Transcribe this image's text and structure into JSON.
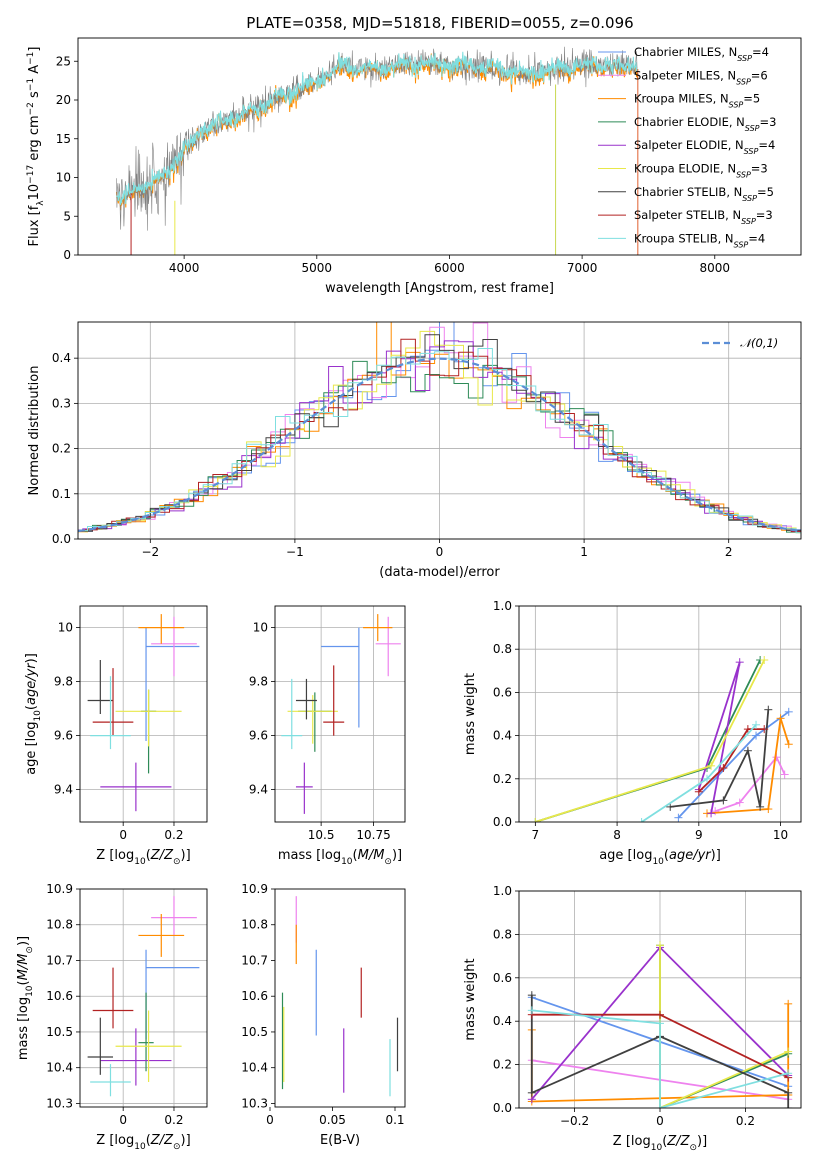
{
  "figure_title": "PLATE=0358, MJD=51818, FIBERID=0055, z=0.096",
  "series_styles": [
    {
      "name": "Chabrier MILES",
      "color": "#6495ed"
    },
    {
      "name": "Salpeter MILES",
      "color": "#ee82ee"
    },
    {
      "name": "Kroupa MILES",
      "color": "#ff8c00"
    },
    {
      "name": "Chabrier ELODIE",
      "color": "#2e8b57"
    },
    {
      "name": "Salpeter ELODIE",
      "color": "#9932cc"
    },
    {
      "name": "Kroupa ELODIE",
      "color": "#e8e84a"
    },
    {
      "name": "Chabrier STELIB",
      "color": "#404040"
    },
    {
      "name": "Salpeter STELIB",
      "color": "#b22222"
    },
    {
      "name": "Kroupa STELIB",
      "color": "#7fdfe0"
    }
  ],
  "chart_data": [
    {
      "id": "spectrum",
      "type": "line",
      "title": "PLATE=0358, MJD=51818, FIBERID=0055, z=0.096",
      "xlabel": "wavelength [Angstrom, rest frame]",
      "ylabel": "Flux [fλ10⁻¹⁷ erg cm⁻² s⁻¹ A⁻¹]",
      "xlim": [
        3200,
        8650
      ],
      "ylim": [
        0,
        28
      ],
      "xticks": [
        4000,
        5000,
        6000,
        7000,
        8000
      ],
      "yticks": [
        0,
        5,
        10,
        15,
        20,
        25
      ],
      "grid": false,
      "legend_position": "top-right",
      "legend": [
        {
          "label": "Chabrier MILES, N",
          "sub": "SSP",
          "suffix": "=4",
          "color": "#6495ed"
        },
        {
          "label": "Salpeter MILES, N",
          "sub": "SSP",
          "suffix": "=6",
          "color": "#ee82ee"
        },
        {
          "label": "Kroupa MILES, N",
          "sub": "SSP",
          "suffix": "=5",
          "color": "#ff8c00"
        },
        {
          "label": "Chabrier ELODIE, N",
          "sub": "SSP",
          "suffix": "=3",
          "color": "#2e8b57"
        },
        {
          "label": "Salpeter ELODIE, N",
          "sub": "SSP",
          "suffix": "=4",
          "color": "#9932cc"
        },
        {
          "label": "Kroupa ELODIE, N",
          "sub": "SSP",
          "suffix": "=3",
          "color": "#e8e84a"
        },
        {
          "label": "Chabrier STELIB, N",
          "sub": "SSP",
          "suffix": "=5",
          "color": "#404040"
        },
        {
          "label": "Salpeter STELIB, N",
          "sub": "SSP",
          "suffix": "=3",
          "color": "#b22222"
        },
        {
          "label": "Kroupa STELIB, N",
          "sub": "SSP",
          "suffix": "=4",
          "color": "#7fdfe0"
        }
      ],
      "observed_range": [
        3490,
        7420
      ],
      "models": [
        {
          "name": "Kroupa STELIB",
          "range": [
            3490,
            7420
          ],
          "x": [
            3500,
            3700,
            3900,
            4000,
            4200,
            4400,
            4600,
            4800,
            5000,
            5200,
            5400,
            5600,
            5800,
            6000,
            6200,
            6400,
            6600,
            6800,
            7000,
            7200,
            7400
          ],
          "y": [
            7.5,
            9,
            11,
            14,
            16.5,
            18,
            19.5,
            21,
            22.5,
            24.5,
            24,
            24.5,
            25,
            24.5,
            24.5,
            24,
            23.5,
            24,
            24.5,
            24.5,
            24.5
          ]
        },
        {
          "name": "Salpeter MILES",
          "range": [
            3490,
            7420
          ],
          "x": [
            3500,
            3700,
            3900,
            4000,
            4200,
            4400,
            4600,
            4800,
            5000,
            5200,
            5400,
            5600,
            5800,
            6000,
            6200,
            6400,
            6600,
            6800,
            7000,
            7200,
            7400
          ],
          "y": [
            7,
            8.5,
            10.5,
            13.5,
            16,
            17.5,
            19,
            20.5,
            22,
            24,
            23.5,
            24,
            24.5,
            24,
            24,
            23.5,
            23,
            23.5,
            24,
            24,
            24
          ]
        }
      ]
    },
    {
      "id": "residuals",
      "type": "step",
      "xlabel": "(data-model)/error",
      "ylabel": "Normed distribution",
      "xlim": [
        -2.5,
        2.5
      ],
      "ylim": [
        0,
        0.48
      ],
      "xticks": [
        -2,
        -1,
        0,
        1,
        2
      ],
      "yticks": [
        0.0,
        0.1,
        0.2,
        0.3,
        0.4
      ],
      "grid": true,
      "legend_position": "top-right",
      "reference": {
        "label": "𝒩(0,1)",
        "mean": 0,
        "sigma": 1,
        "color": "#5b8ed6",
        "style": "dashed"
      }
    },
    {
      "id": "age-vs-Z",
      "type": "errorbar",
      "xlabel": "Z [log10(Z/Z⊙)]",
      "ylabel": "age  [log10(age/yr)]",
      "xlim": [
        -0.17,
        0.33
      ],
      "ylim": [
        9.28,
        10.08
      ],
      "xticks": [
        0.0,
        0.2
      ],
      "yticks": [
        9.4,
        9.6,
        9.8,
        10.0
      ],
      "grid": true,
      "points": [
        {
          "series": "Chabrier MILES",
          "x": 0.09,
          "xerr": [
            0.0,
            0.21
          ],
          "y": 9.93,
          "yerr": [
            0.35,
            0.07
          ]
        },
        {
          "series": "Salpeter MILES",
          "x": 0.2,
          "xerr": [
            0.09,
            0.09
          ],
          "y": 9.94,
          "yerr": [
            0.12,
            0.1
          ]
        },
        {
          "series": "Kroupa MILES",
          "x": 0.15,
          "xerr": [
            0.09,
            0.09
          ],
          "y": 10.0,
          "yerr": [
            0.06,
            0.05
          ]
        },
        {
          "series": "Chabrier ELODIE",
          "x": 0.1,
          "xerr": [
            0.03,
            0.03
          ],
          "y": 9.69,
          "yerr": [
            0.23,
            0.08
          ]
        },
        {
          "series": "Salpeter ELODIE",
          "x": 0.05,
          "xerr": [
            0.14,
            0.14
          ],
          "y": 9.41,
          "yerr": [
            0.09,
            0.09
          ]
        },
        {
          "series": "Kroupa ELODIE",
          "x": 0.1,
          "xerr": [
            0.13,
            0.13
          ],
          "y": 9.69,
          "yerr": [
            0.13,
            0.08
          ]
        },
        {
          "series": "Chabrier STELIB",
          "x": -0.09,
          "xerr": [
            0.05,
            0.05
          ],
          "y": 9.73,
          "yerr": [
            0.05,
            0.15
          ]
        },
        {
          "series": "Salpeter STELIB",
          "x": -0.04,
          "xerr": [
            0.08,
            0.08
          ],
          "y": 9.65,
          "yerr": [
            0.05,
            0.2
          ]
        },
        {
          "series": "Kroupa STELIB",
          "x": -0.05,
          "xerr": [
            0.08,
            0.08
          ],
          "y": 9.6,
          "yerr": [
            0.05,
            0.22
          ]
        }
      ]
    },
    {
      "id": "age-vs-mass",
      "type": "errorbar",
      "xlabel": "mass [log10(M/M⊙)]",
      "ylabel": "",
      "xlim": [
        10.28,
        10.9
      ],
      "ylim": [
        9.28,
        10.08
      ],
      "xticks": [
        10.5,
        10.75
      ],
      "yticks": [
        9.4,
        9.6,
        9.8,
        10.0
      ],
      "grid": true,
      "points": [
        {
          "series": "Chabrier MILES",
          "x": 10.68,
          "xerr": [
            0.18,
            0.0
          ],
          "y": 9.93,
          "yerr": [
            0.3,
            0.07
          ]
        },
        {
          "series": "Salpeter MILES",
          "x": 10.82,
          "xerr": [
            0.06,
            0.06
          ],
          "y": 9.94,
          "yerr": [
            0.12,
            0.1
          ]
        },
        {
          "series": "Kroupa MILES",
          "x": 10.77,
          "xerr": [
            0.07,
            0.07
          ],
          "y": 10.0,
          "yerr": [
            0.05,
            0.05
          ]
        },
        {
          "series": "Chabrier ELODIE",
          "x": 10.47,
          "xerr": [
            0.08,
            0.08
          ],
          "y": 9.69,
          "yerr": [
            0.15,
            0.07
          ]
        },
        {
          "series": "Salpeter ELODIE",
          "x": 10.42,
          "xerr": [
            0.04,
            0.04
          ],
          "y": 9.41,
          "yerr": [
            0.1,
            0.09
          ]
        },
        {
          "series": "Kroupa ELODIE",
          "x": 10.46,
          "xerr": [
            0.12,
            0.12
          ],
          "y": 9.69,
          "yerr": [
            0.12,
            0.06
          ]
        },
        {
          "series": "Chabrier STELIB",
          "x": 10.43,
          "xerr": [
            0.05,
            0.05
          ],
          "y": 9.73,
          "yerr": [
            0.07,
            0.08
          ]
        },
        {
          "series": "Salpeter STELIB",
          "x": 10.56,
          "xerr": [
            0.05,
            0.05
          ],
          "y": 9.65,
          "yerr": [
            0.05,
            0.21
          ]
        },
        {
          "series": "Kroupa STELIB",
          "x": 10.36,
          "xerr": [
            0.05,
            0.05
          ],
          "y": 9.6,
          "yerr": [
            0.05,
            0.21
          ]
        }
      ]
    },
    {
      "id": "mass-weight-vs-age",
      "type": "line",
      "xlabel": "age  [log10(age/yr)]",
      "ylabel": "mass weight",
      "xlim": [
        6.8,
        10.25
      ],
      "ylim": [
        0,
        1.0
      ],
      "xticks": [
        7,
        8,
        9,
        10
      ],
      "yticks": [
        0.0,
        0.2,
        0.4,
        0.6,
        0.8,
        1.0
      ],
      "grid": true,
      "series": [
        {
          "name": "Chabrier MILES",
          "x": [
            8.75,
            9.7,
            10.1
          ],
          "y": [
            0.02,
            0.4,
            0.51
          ]
        },
        {
          "name": "Salpeter MILES",
          "x": [
            9.2,
            9.5,
            9.95,
            10.05
          ],
          "y": [
            0.05,
            0.09,
            0.3,
            0.22
          ]
        },
        {
          "name": "Kroupa MILES",
          "x": [
            9.1,
            9.85,
            10.0,
            10.1
          ],
          "y": [
            0.04,
            0.06,
            0.48,
            0.36
          ]
        },
        {
          "name": "Chabrier ELODIE",
          "x": [
            7.0,
            9.1,
            9.75
          ],
          "y": [
            0.0,
            0.25,
            0.75
          ]
        },
        {
          "name": "Salpeter ELODIE",
          "x": [
            9.0,
            9.5,
            9.15
          ],
          "y": [
            0.15,
            0.74,
            0.04
          ]
        },
        {
          "name": "Kroupa ELODIE",
          "x": [
            7.0,
            9.15,
            9.8
          ],
          "y": [
            0.0,
            0.26,
            0.75
          ]
        },
        {
          "name": "Chabrier STELIB",
          "x": [
            8.65,
            9.3,
            9.6,
            9.75,
            9.85
          ],
          "y": [
            0.07,
            0.1,
            0.33,
            0.07,
            0.52
          ]
        },
        {
          "name": "Salpeter STELIB",
          "x": [
            9.0,
            9.3,
            9.6,
            9.8
          ],
          "y": [
            0.14,
            0.25,
            0.43,
            0.43
          ]
        },
        {
          "name": "Kroupa STELIB",
          "x": [
            8.3,
            9.1,
            9.7
          ],
          "y": [
            0.0,
            0.2,
            0.45
          ]
        }
      ]
    },
    {
      "id": "mass-vs-Z",
      "type": "errorbar",
      "xlabel": "Z [log10(Z/Z⊙)]",
      "ylabel": "mass [log10(M/M⊙)]",
      "xlim": [
        -0.17,
        0.33
      ],
      "ylim": [
        10.29,
        10.9
      ],
      "xticks": [
        0.0,
        0.2
      ],
      "yticks": [
        10.3,
        10.4,
        10.5,
        10.6,
        10.7,
        10.8,
        10.9
      ],
      "grid": true,
      "points": [
        {
          "series": "Chabrier MILES",
          "x": 0.09,
          "xerr": [
            0.0,
            0.21
          ],
          "y": 10.68,
          "yerr": [
            0.2,
            0.05
          ]
        },
        {
          "series": "Salpeter MILES",
          "x": 0.2,
          "xerr": [
            0.09,
            0.09
          ],
          "y": 10.82,
          "yerr": [
            0.05,
            0.06
          ]
        },
        {
          "series": "Kroupa MILES",
          "x": 0.15,
          "xerr": [
            0.09,
            0.09
          ],
          "y": 10.77,
          "yerr": [
            0.06,
            0.06
          ]
        },
        {
          "series": "Chabrier ELODIE",
          "x": 0.09,
          "xerr": [
            0.03,
            0.03
          ],
          "y": 10.47,
          "yerr": [
            0.08,
            0.14
          ]
        },
        {
          "series": "Salpeter ELODIE",
          "x": 0.05,
          "xerr": [
            0.14,
            0.14
          ],
          "y": 10.42,
          "yerr": [
            0.07,
            0.09
          ]
        },
        {
          "series": "Kroupa ELODIE",
          "x": 0.1,
          "xerr": [
            0.13,
            0.13
          ],
          "y": 10.46,
          "yerr": [
            0.1,
            0.1
          ]
        },
        {
          "series": "Chabrier STELIB",
          "x": -0.09,
          "xerr": [
            0.05,
            0.05
          ],
          "y": 10.43,
          "yerr": [
            0.05,
            0.11
          ]
        },
        {
          "series": "Salpeter STELIB",
          "x": -0.04,
          "xerr": [
            0.08,
            0.08
          ],
          "y": 10.56,
          "yerr": [
            0.05,
            0.12
          ]
        },
        {
          "series": "Kroupa STELIB",
          "x": -0.05,
          "xerr": [
            0.08,
            0.08
          ],
          "y": 10.36,
          "yerr": [
            0.04,
            0.05
          ]
        }
      ]
    },
    {
      "id": "mass-vs-EBV",
      "type": "errorbar",
      "xlabel": "E(B-V)",
      "ylabel": "",
      "xlim": [
        0.004,
        0.108
      ],
      "ylim": [
        10.29,
        10.9
      ],
      "xticks": [
        0.0,
        0.05,
        0.1
      ],
      "yticks": [
        10.3,
        10.4,
        10.5,
        10.6,
        10.7,
        10.8,
        10.9
      ],
      "grid": false,
      "points": [
        {
          "series": "Chabrier MILES",
          "x": 0.037,
          "y": 10.61,
          "yerr": [
            0.12,
            0.12
          ]
        },
        {
          "series": "Salpeter MILES",
          "x": 0.021,
          "y": 10.82,
          "yerr": [
            0.07,
            0.06
          ]
        },
        {
          "series": "Kroupa MILES",
          "x": 0.021,
          "y": 10.77,
          "yerr": [
            0.08,
            0.03
          ]
        },
        {
          "series": "Chabrier ELODIE",
          "x": 0.01,
          "y": 10.47,
          "yerr": [
            0.13,
            0.14
          ]
        },
        {
          "series": "Salpeter ELODIE",
          "x": 0.059,
          "y": 10.42,
          "yerr": [
            0.09,
            0.09
          ]
        },
        {
          "series": "Kroupa ELODIE",
          "x": 0.011,
          "y": 10.47,
          "yerr": [
            0.11,
            0.1
          ]
        },
        {
          "series": "Chabrier STELIB",
          "x": 0.102,
          "y": 10.47,
          "yerr": [
            0.08,
            0.07
          ]
        },
        {
          "series": "Salpeter STELIB",
          "x": 0.073,
          "y": 10.6,
          "yerr": [
            0.06,
            0.08
          ]
        },
        {
          "series": "Kroupa STELIB",
          "x": 0.096,
          "y": 10.4,
          "yerr": [
            0.08,
            0.08
          ]
        }
      ]
    },
    {
      "id": "mass-weight-vs-Z",
      "type": "line",
      "xlabel": "Z [log10(Z/Z⊙)]",
      "ylabel": "mass weight",
      "xlim": [
        -0.33,
        0.33
      ],
      "ylim": [
        0,
        1.0
      ],
      "xticks": [
        -0.2,
        0.0,
        0.2
      ],
      "yticks": [
        0.0,
        0.2,
        0.4,
        0.6,
        0.8,
        1.0
      ],
      "grid": true,
      "series": [
        {
          "name": "Chabrier MILES",
          "x": [
            -0.3,
            0.3
          ],
          "y": [
            0.51,
            0.1
          ]
        },
        {
          "name": "Salpeter MILES",
          "x": [
            -0.3,
            0.3
          ],
          "y": [
            0.22,
            0.04
          ]
        },
        {
          "name": "Kroupa MILES",
          "x": [
            -0.3,
            -0.3,
            0.3,
            0.3,
            0.3
          ],
          "y": [
            0.36,
            0.03,
            0.06,
            0.48,
            0.06
          ]
        },
        {
          "name": "Chabrier ELODIE",
          "x": [
            0.0,
            0.0,
            0.3
          ],
          "y": [
            0.75,
            0.0,
            0.25
          ]
        },
        {
          "name": "Salpeter ELODIE",
          "x": [
            -0.3,
            0.0,
            0.3
          ],
          "y": [
            0.04,
            0.74,
            0.15
          ]
        },
        {
          "name": "Kroupa ELODIE",
          "x": [
            0.0,
            0.0,
            0.3
          ],
          "y": [
            0.75,
            0.0,
            0.26
          ]
        },
        {
          "name": "Chabrier STELIB",
          "x": [
            -0.3,
            -0.3,
            0.0,
            0.3,
            0.3
          ],
          "y": [
            0.52,
            0.07,
            0.33,
            0.07,
            0.0
          ]
        },
        {
          "name": "Salpeter STELIB",
          "x": [
            -0.3,
            0.0,
            0.3
          ],
          "y": [
            0.43,
            0.43,
            0.14
          ]
        },
        {
          "name": "Kroupa STELIB",
          "x": [
            -0.3,
            0.0,
            0.0,
            0.3
          ],
          "y": [
            0.45,
            0.39,
            0.0,
            0.16
          ]
        }
      ]
    }
  ]
}
